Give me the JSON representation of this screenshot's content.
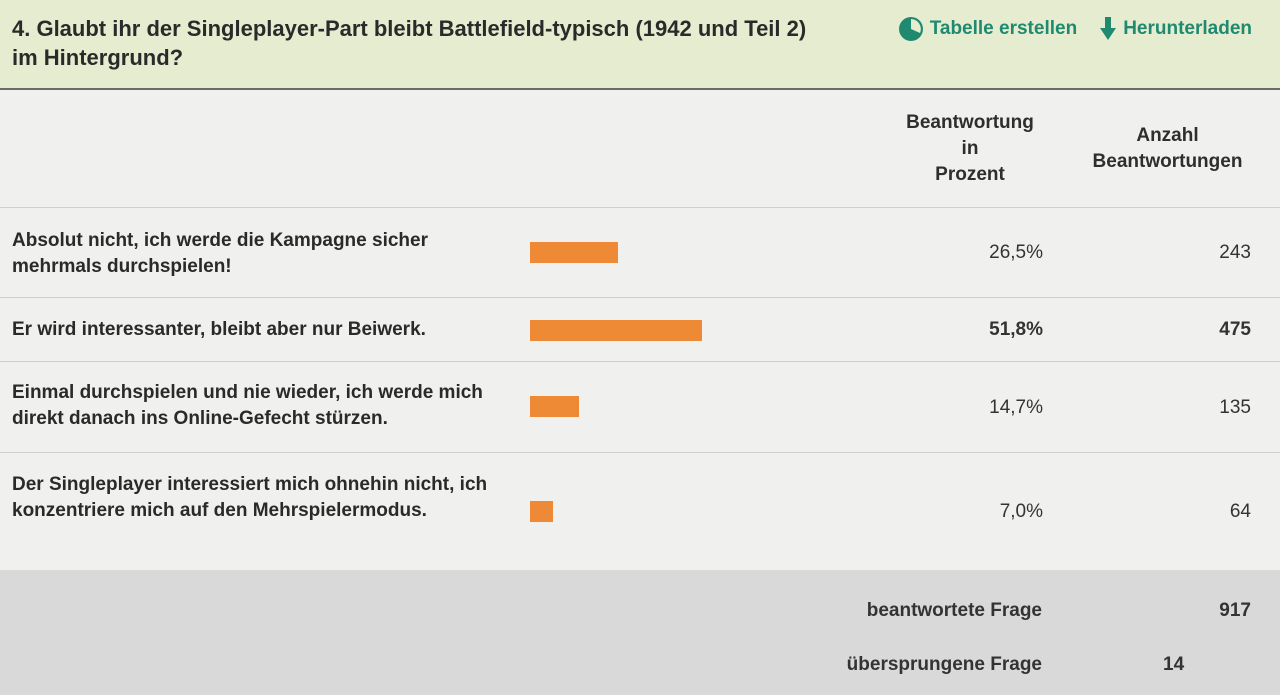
{
  "question": "4. Glaubt ihr der Singleplayer-Part bleibt Battlefield-typisch (1942 und Teil 2) im Hintergrund?",
  "actions": {
    "create_table": "Tabelle erstellen",
    "download": "Herunterladen"
  },
  "colors": {
    "accent": "#1f8a70",
    "bar": "#ee8a35",
    "header_bg": "#e6eccf"
  },
  "columns": {
    "percent_line1": "Beantwortung",
    "percent_line2": "in",
    "percent_line3": "Prozent",
    "count_line1": "Anzahl",
    "count_line2": "Beantwortungen"
  },
  "rows": [
    {
      "label": "Absolut nicht, ich werde die Kampagne sicher mehrmals durchspielen!",
      "percent": "26,5%",
      "count": "243",
      "share": 26.5
    },
    {
      "label": "Er wird interessanter, bleibt aber nur Beiwerk.",
      "percent": "51,8%",
      "count": "475",
      "share": 51.8
    },
    {
      "label": "Einmal durchspielen und nie wieder, ich werde mich direkt danach ins Online-Gefecht stürzen.",
      "percent": "14,7%",
      "count": "135",
      "share": 14.7
    },
    {
      "label": "Der Singleplayer interessiert mich ohnehin nicht, ich konzentriere mich auf den Mehrspielermodus.",
      "percent": "7,0%",
      "count": "64",
      "share": 7.0
    }
  ],
  "footer": {
    "answered_label": "beantwortete Frage",
    "answered_value": "917",
    "skipped_label": "übersprungene Frage",
    "skipped_value": "14"
  }
}
